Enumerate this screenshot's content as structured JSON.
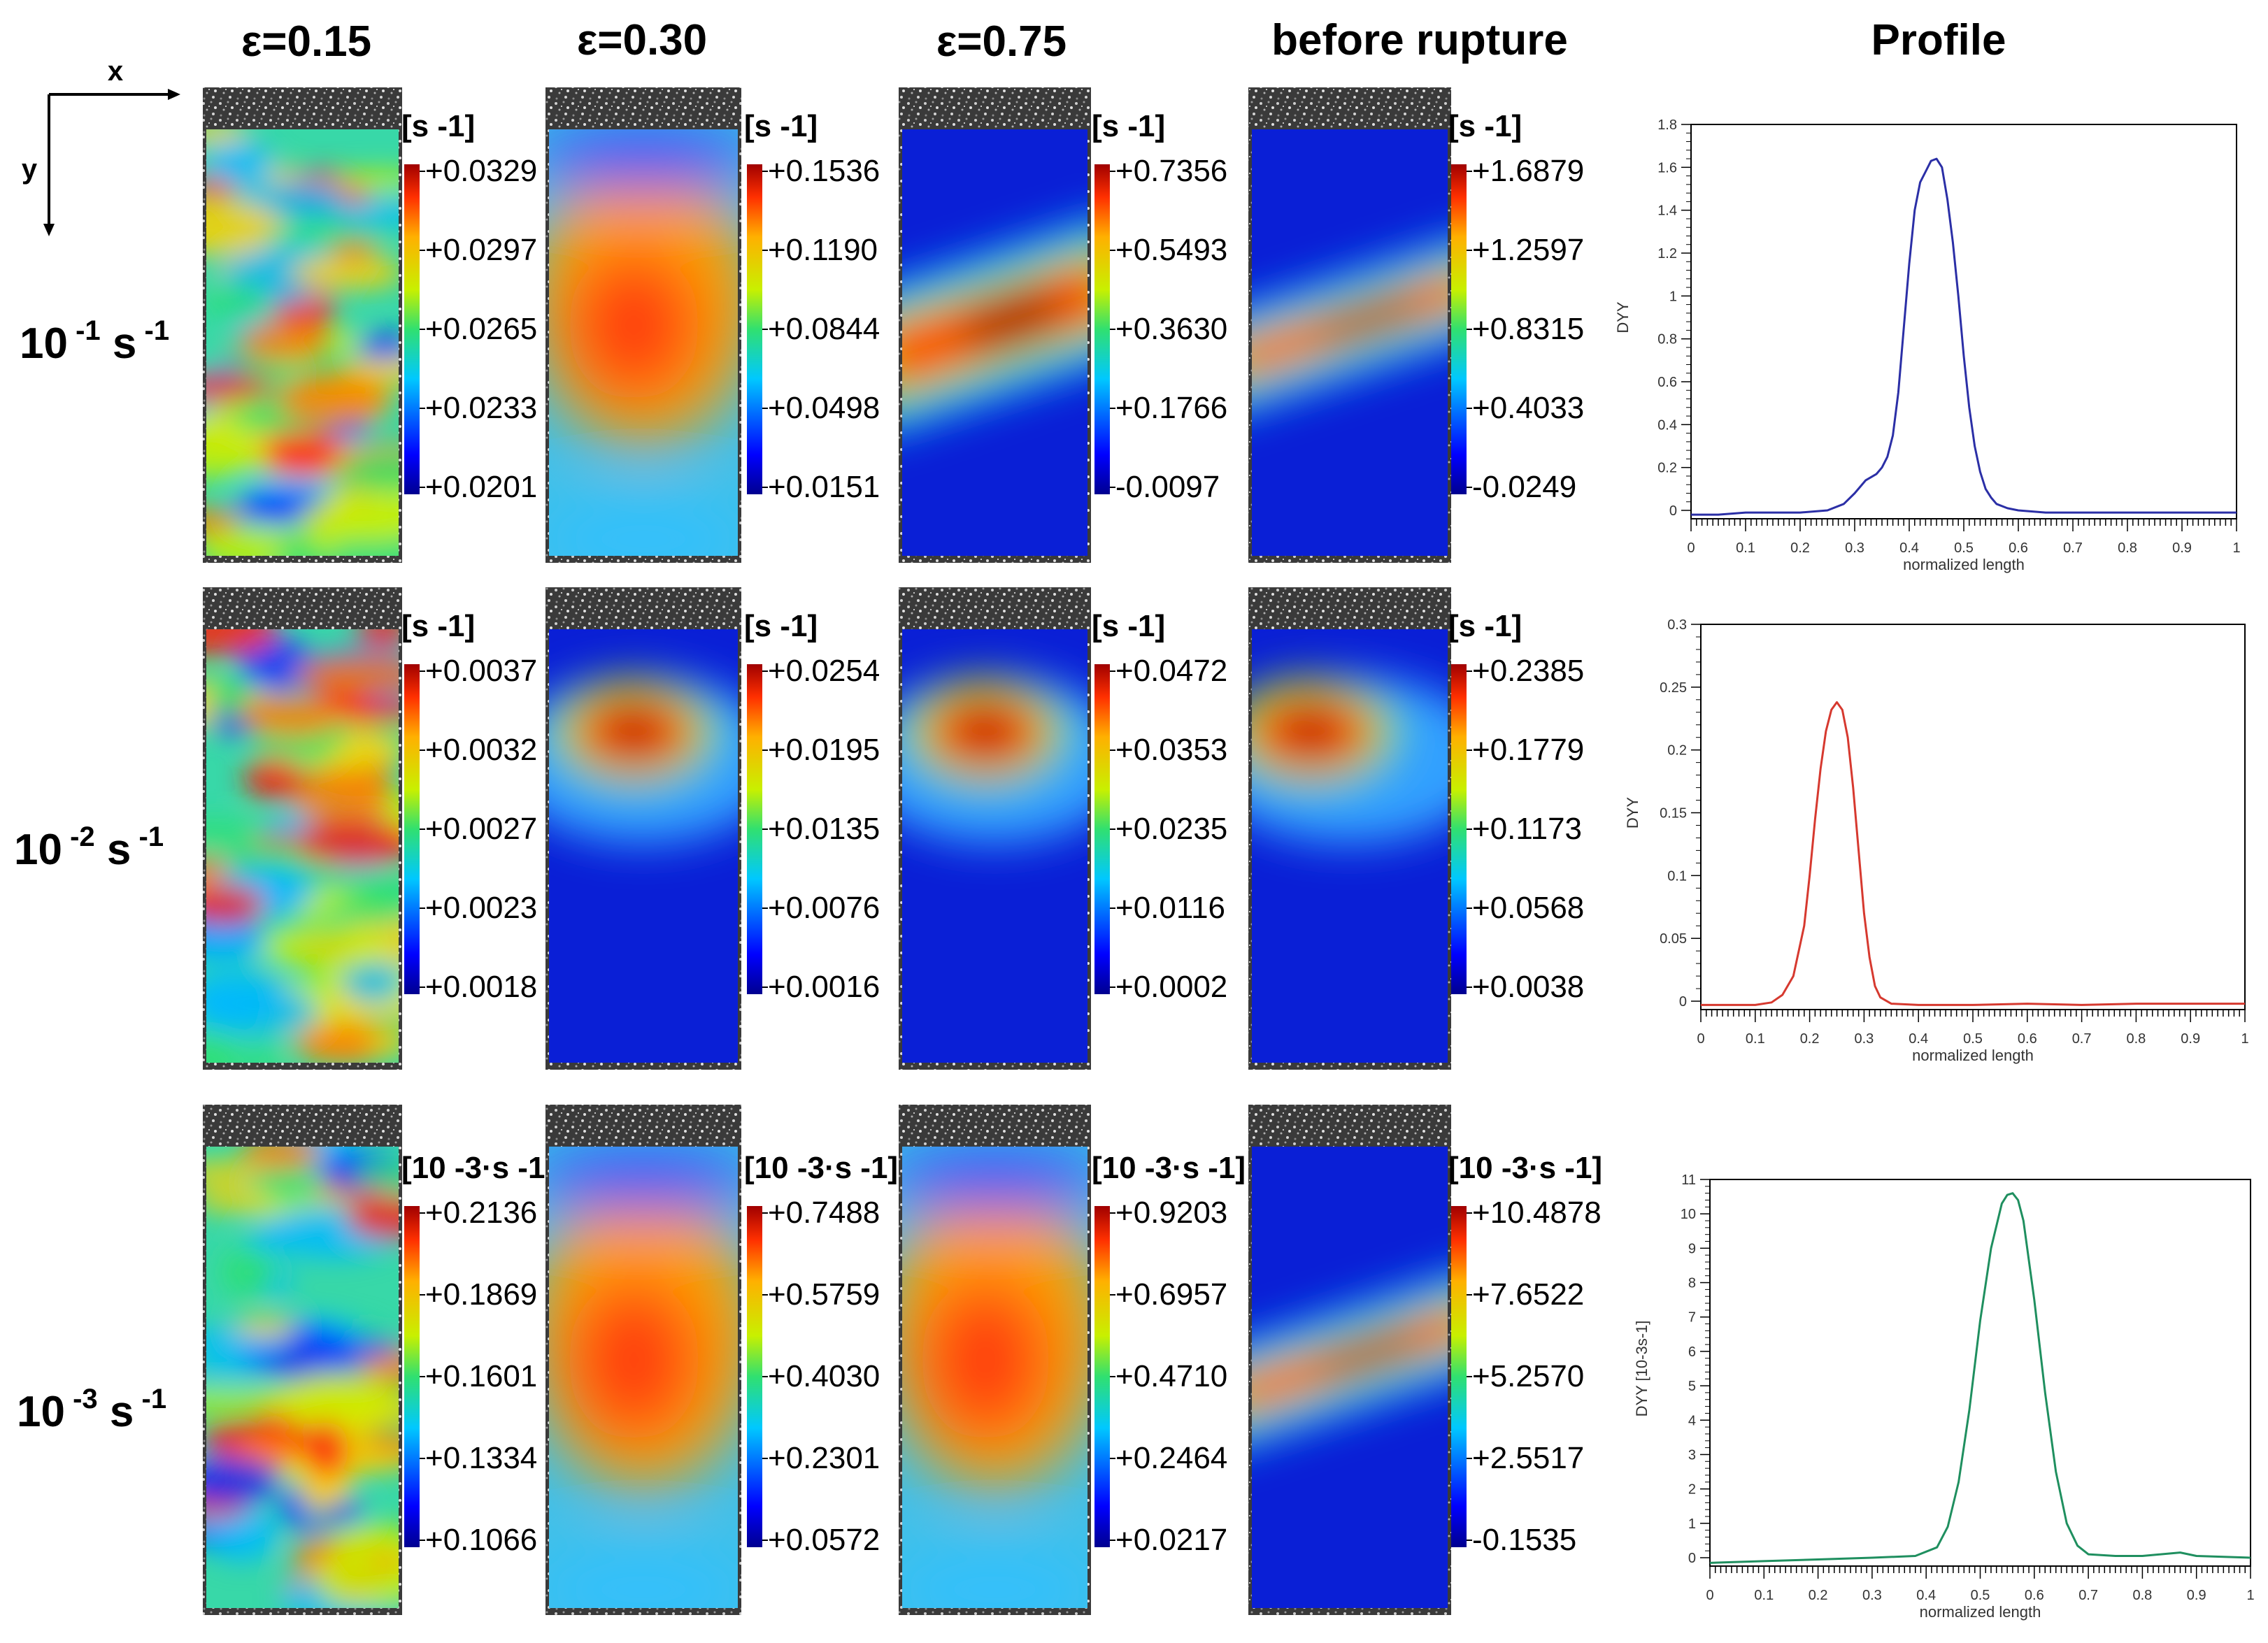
{
  "axes_indicator": {
    "x_label": "x",
    "y_label": "y"
  },
  "column_headers": [
    "ε=0.15",
    "ε=0.30",
    "ε=0.75",
    "before rupture",
    "Profile"
  ],
  "rows": [
    {
      "rate": {
        "base": "10",
        "exp": "-1",
        "unit": "s",
        "unit_exp": "-1"
      },
      "maps": [
        {
          "unit": "[s -1]",
          "ticks": [
            "+0.0329",
            "+0.0297",
            "+0.0265",
            "+0.0233",
            "+0.0201"
          ],
          "pattern": "noisy"
        },
        {
          "unit": "[s -1]",
          "ticks": [
            "+0.1536",
            "+0.1190",
            "+0.0844",
            "+0.0498",
            "+0.0151"
          ],
          "pattern": "diffuse"
        },
        {
          "unit": "[s -1]",
          "ticks": [
            "+0.7356",
            "+0.5493",
            "+0.3630",
            "+0.1766",
            "-0.0097"
          ],
          "pattern": "band"
        },
        {
          "unit": "[s -1]",
          "ticks": [
            "+1.6879",
            "+1.2597",
            "+0.8315",
            "+0.4033",
            "-0.0249"
          ],
          "pattern": "narrow-band"
        }
      ]
    },
    {
      "rate": {
        "base": "10",
        "exp": "-2",
        "unit": "s",
        "unit_exp": "-1"
      },
      "maps": [
        {
          "unit": "[s -1]",
          "ticks": [
            "+0.0037",
            "+0.0032",
            "+0.0027",
            "+0.0023",
            "+0.0018"
          ],
          "pattern": "noisy"
        },
        {
          "unit": "[s -1]",
          "ticks": [
            "+0.0254",
            "+0.0195",
            "+0.0135",
            "+0.0076",
            "+0.0016"
          ],
          "pattern": "spot"
        },
        {
          "unit": "[s -1]",
          "ticks": [
            "+0.0472",
            "+0.0353",
            "+0.0235",
            "+0.0116",
            "+0.0002"
          ],
          "pattern": "spot"
        },
        {
          "unit": "[s -1]",
          "ticks": [
            "+0.2385",
            "+0.1779",
            "+0.1173",
            "+0.0568",
            "+0.0038"
          ],
          "pattern": "corner-spot"
        }
      ]
    },
    {
      "rate": {
        "base": "10",
        "exp": "-3",
        "unit": "s",
        "unit_exp": "-1"
      },
      "maps": [
        {
          "unit": "[10 -3·s -1]",
          "ticks": [
            "+0.2136",
            "+0.1869",
            "+0.1601",
            "+0.1334",
            "+0.1066"
          ],
          "pattern": "noisy"
        },
        {
          "unit": "[10 -3·s -1]",
          "ticks": [
            "+0.7488",
            "+0.5759",
            "+0.4030",
            "+0.2301",
            "+0.0572"
          ],
          "pattern": "diffuse"
        },
        {
          "unit": "[10 -3·s -1]",
          "ticks": [
            "+0.9203",
            "+0.6957",
            "+0.4710",
            "+0.2464",
            "+0.0217"
          ],
          "pattern": "diffuse"
        },
        {
          "unit": "[10 -3·s -1]",
          "ticks": [
            "+10.4878",
            "+7.6522",
            "+5.2570",
            "+2.5517",
            "-0.1535"
          ],
          "pattern": "narrow-band"
        }
      ]
    }
  ],
  "chart_data": [
    {
      "type": "line",
      "title": "",
      "xlabel": "normalized length",
      "ylabel": "DYY",
      "xlim": [
        0,
        1
      ],
      "ylim": [
        0,
        1.8
      ],
      "xticks": [
        "0",
        "0.1",
        "0.2",
        "0.3",
        "0.4",
        "0.5",
        "0.6",
        "0.7",
        "0.8",
        "0.9",
        "1"
      ],
      "yticks": [
        "0",
        "0.2",
        "0.4",
        "0.6",
        "0.8",
        "1",
        "1.2",
        "1.4",
        "1.6",
        "1.8"
      ],
      "color": "#2b2fa6",
      "series": [
        {
          "name": "10-1 s-1",
          "x": [
            0,
            0.05,
            0.1,
            0.15,
            0.2,
            0.25,
            0.28,
            0.3,
            0.32,
            0.34,
            0.35,
            0.36,
            0.37,
            0.38,
            0.39,
            0.4,
            0.41,
            0.42,
            0.43,
            0.44,
            0.45,
            0.46,
            0.47,
            0.48,
            0.49,
            0.5,
            0.51,
            0.52,
            0.53,
            0.54,
            0.55,
            0.56,
            0.58,
            0.6,
            0.65,
            0.7,
            0.8,
            0.9,
            1.0
          ],
          "y": [
            -0.02,
            -0.02,
            -0.01,
            -0.01,
            -0.01,
            0.0,
            0.03,
            0.08,
            0.14,
            0.17,
            0.2,
            0.25,
            0.35,
            0.55,
            0.85,
            1.15,
            1.4,
            1.53,
            1.58,
            1.63,
            1.64,
            1.6,
            1.45,
            1.25,
            1.0,
            0.72,
            0.48,
            0.3,
            0.18,
            0.1,
            0.06,
            0.03,
            0.01,
            0.0,
            -0.01,
            -0.01,
            -0.01,
            -0.01,
            -0.01
          ]
        }
      ]
    },
    {
      "type": "line",
      "title": "",
      "xlabel": "normalized length",
      "ylabel": "DYY",
      "xlim": [
        0,
        1
      ],
      "ylim": [
        0,
        0.3
      ],
      "xticks": [
        "0",
        "0.1",
        "0.2",
        "0.3",
        "0.4",
        "0.5",
        "0.6",
        "0.7",
        "0.8",
        "0.9",
        "1"
      ],
      "yticks": [
        "0",
        "0.05",
        "0.1",
        "0.15",
        "0.2",
        "0.25",
        "0.3"
      ],
      "color": "#d6392f",
      "series": [
        {
          "name": "10-2 s-1",
          "x": [
            0,
            0.05,
            0.1,
            0.13,
            0.15,
            0.17,
            0.19,
            0.2,
            0.21,
            0.22,
            0.23,
            0.24,
            0.25,
            0.26,
            0.27,
            0.28,
            0.29,
            0.3,
            0.31,
            0.32,
            0.33,
            0.35,
            0.4,
            0.5,
            0.6,
            0.7,
            0.8,
            0.9,
            1.0
          ],
          "y": [
            -0.003,
            -0.003,
            -0.003,
            -0.001,
            0.005,
            0.02,
            0.06,
            0.1,
            0.145,
            0.185,
            0.215,
            0.232,
            0.238,
            0.232,
            0.21,
            0.17,
            0.12,
            0.07,
            0.035,
            0.012,
            0.003,
            -0.002,
            -0.003,
            -0.003,
            -0.002,
            -0.003,
            -0.002,
            -0.002,
            -0.002
          ]
        }
      ]
    },
    {
      "type": "line",
      "title": "",
      "xlabel": "normalized length",
      "ylabel": "DYY [10-3s-1]",
      "xlim": [
        0,
        1
      ],
      "ylim": [
        0,
        11
      ],
      "xticks": [
        "0",
        "0.1",
        "0.2",
        "0.3",
        "0.4",
        "0.5",
        "0.6",
        "0.7",
        "0.8",
        "0.9",
        "1"
      ],
      "yticks": [
        "0",
        "1",
        "2",
        "3",
        "4",
        "5",
        "6",
        "7",
        "8",
        "9",
        "10",
        "11"
      ],
      "color": "#1f8f5f",
      "series": [
        {
          "name": "10-3 s-1",
          "x": [
            0,
            0.1,
            0.2,
            0.3,
            0.38,
            0.42,
            0.44,
            0.46,
            0.48,
            0.5,
            0.52,
            0.54,
            0.55,
            0.56,
            0.57,
            0.58,
            0.6,
            0.62,
            0.64,
            0.66,
            0.68,
            0.7,
            0.75,
            0.8,
            0.87,
            0.9,
            1.0
          ],
          "y": [
            -0.15,
            -0.1,
            -0.05,
            0.0,
            0.05,
            0.3,
            0.9,
            2.2,
            4.3,
            6.9,
            9.0,
            10.3,
            10.55,
            10.6,
            10.4,
            9.8,
            7.5,
            4.8,
            2.5,
            1.0,
            0.35,
            0.1,
            0.05,
            0.05,
            0.15,
            0.05,
            0.0
          ]
        }
      ]
    }
  ]
}
